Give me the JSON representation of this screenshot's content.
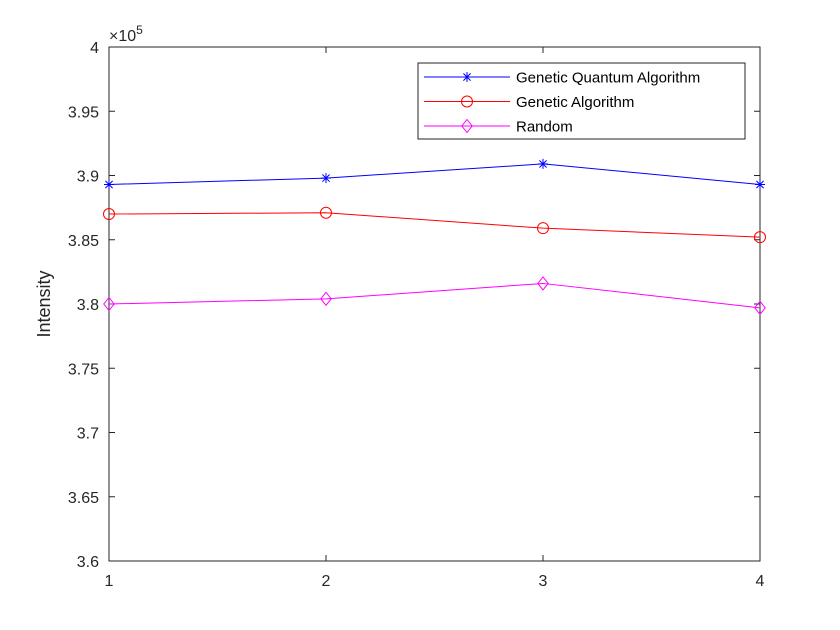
{
  "chart_data": {
    "type": "line",
    "title": "",
    "xlabel": "",
    "ylabel": "Intensity",
    "exponent_label": "×10",
    "exponent_power": "5",
    "x": [
      1,
      2,
      3,
      4
    ],
    "xlim": [
      1,
      4
    ],
    "ylim": [
      3.6,
      4
    ],
    "x_ticks": [
      "1",
      "2",
      "3",
      "4"
    ],
    "y_ticks": [
      "3.6",
      "3.65",
      "3.7",
      "3.75",
      "3.8",
      "3.85",
      "3.9",
      "3.95",
      "4"
    ],
    "grid": false,
    "legend_position": "top-right",
    "series": [
      {
        "name": "Genetic Quantum Algorithm",
        "values": [
          3.893,
          3.898,
          3.909,
          3.893
        ],
        "color": "#0000ff",
        "marker": "asterisk"
      },
      {
        "name": "Genetic Algorithm",
        "values": [
          3.87,
          3.871,
          3.859,
          3.852
        ],
        "color": "#ff0000",
        "marker": "circle"
      },
      {
        "name": "Random",
        "values": [
          3.8,
          3.804,
          3.816,
          3.797
        ],
        "color": "#ff00ff",
        "marker": "diamond"
      }
    ]
  }
}
